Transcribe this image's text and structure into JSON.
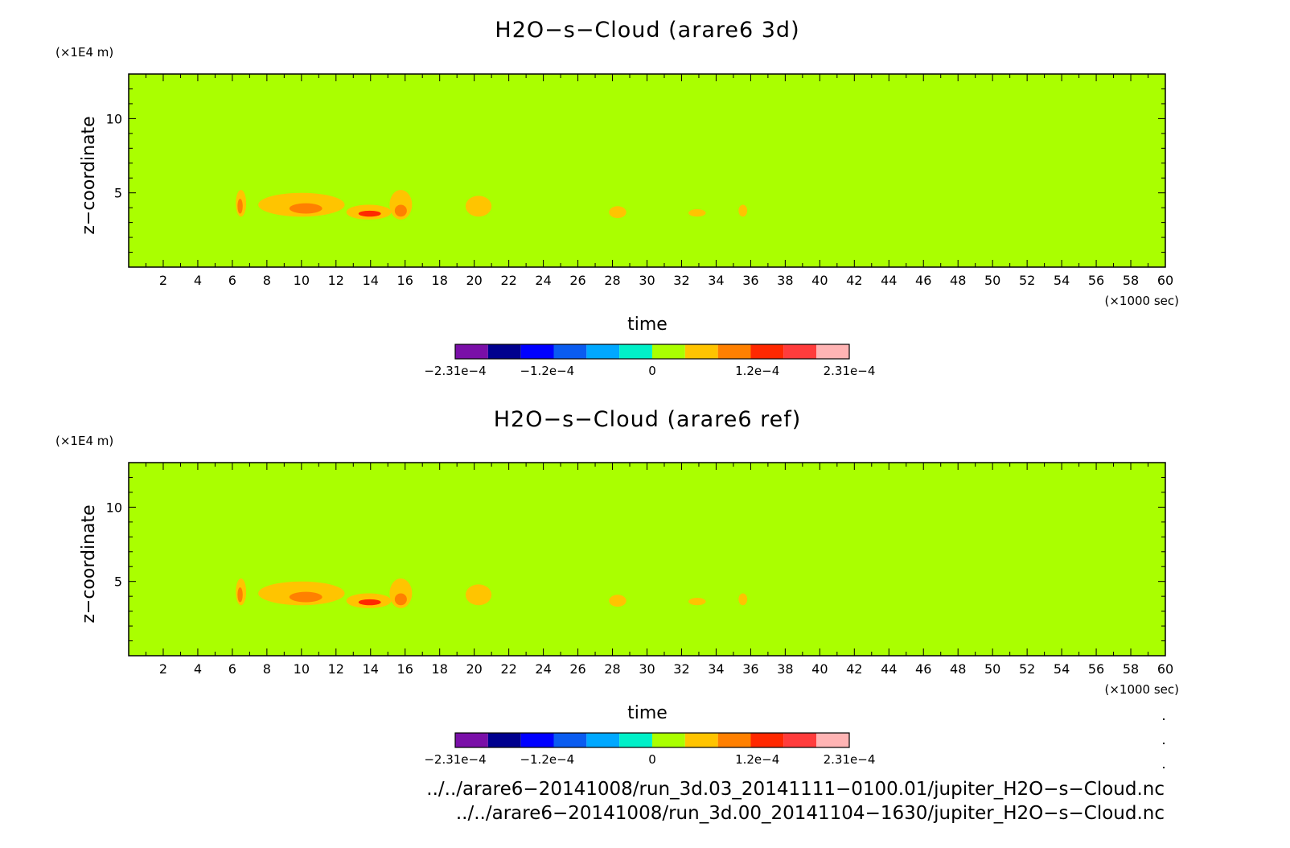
{
  "chart_data": [
    {
      "type": "heatmap",
      "title": "H2O−s−Cloud (arare6 3d)",
      "xlabel": "time",
      "x_unit": "(×1000 sec)",
      "ylabel": "z−coordinate",
      "y_unit": "(×1E4 m)",
      "xlim": [
        0,
        60
      ],
      "ylim": [
        0,
        13
      ],
      "xticks": [
        "2",
        "4",
        "6",
        "8",
        "10",
        "12",
        "14",
        "16",
        "18",
        "20",
        "22",
        "24",
        "26",
        "28",
        "30",
        "32",
        "34",
        "36",
        "38",
        "40",
        "42",
        "44",
        "46",
        "48",
        "50",
        "52",
        "54",
        "56",
        "58",
        "60"
      ],
      "yticks": [
        "5",
        "10"
      ],
      "background_value": 0,
      "features": [
        {
          "x": [
            6.2,
            6.8
          ],
          "y": [
            3.4,
            5.2
          ],
          "level": "orange"
        },
        {
          "x": [
            6.3,
            6.6
          ],
          "y": [
            3.6,
            4.6
          ],
          "level": "dark-orange"
        },
        {
          "x": [
            7.5,
            12.5
          ],
          "y": [
            3.4,
            5.0
          ],
          "level": "orange"
        },
        {
          "x": [
            9.3,
            11.2
          ],
          "y": [
            3.6,
            4.3
          ],
          "level": "dark-orange"
        },
        {
          "x": [
            12.6,
            15.2
          ],
          "y": [
            3.2,
            4.2
          ],
          "level": "orange"
        },
        {
          "x": [
            13.3,
            14.6
          ],
          "y": [
            3.4,
            3.8
          ],
          "level": "red"
        },
        {
          "x": [
            15.1,
            16.4
          ],
          "y": [
            3.2,
            5.2
          ],
          "level": "orange"
        },
        {
          "x": [
            15.4,
            16.1
          ],
          "y": [
            3.4,
            4.2
          ],
          "level": "dark-orange"
        },
        {
          "x": [
            19.5,
            21.0
          ],
          "y": [
            3.4,
            4.8
          ],
          "level": "orange"
        },
        {
          "x": [
            27.8,
            28.8
          ],
          "y": [
            3.3,
            4.1
          ],
          "level": "orange"
        },
        {
          "x": [
            32.4,
            33.4
          ],
          "y": [
            3.4,
            3.9
          ],
          "level": "orange"
        },
        {
          "x": [
            35.3,
            35.8
          ],
          "y": [
            3.4,
            4.2
          ],
          "level": "orange"
        }
      ],
      "colorbar": {
        "colors": [
          "#7a0fa8",
          "#00008e",
          "#0000ff",
          "#0a5cf0",
          "#00a8ff",
          "#00f0c8",
          "#aaff00",
          "#ffc400",
          "#ff8000",
          "#ff2800",
          "#ff3c3c",
          "#ffb4b4"
        ],
        "labels": [
          "−2.31e−4",
          "−1.2e−4",
          "0",
          "1.2e−4",
          "2.31e−4"
        ]
      }
    },
    {
      "type": "heatmap",
      "title": "H2O−s−Cloud (arare6 ref)",
      "xlabel": "time",
      "x_unit": "(×1000 sec)",
      "ylabel": "z−coordinate",
      "y_unit": "(×1E4 m)",
      "xlim": [
        0,
        60
      ],
      "ylim": [
        0,
        13
      ],
      "xticks": [
        "2",
        "4",
        "6",
        "8",
        "10",
        "12",
        "14",
        "16",
        "18",
        "20",
        "22",
        "24",
        "26",
        "28",
        "30",
        "32",
        "34",
        "36",
        "38",
        "40",
        "42",
        "44",
        "46",
        "48",
        "50",
        "52",
        "54",
        "56",
        "58",
        "60"
      ],
      "yticks": [
        "5",
        "10"
      ],
      "background_value": 0,
      "features": [
        {
          "x": [
            6.2,
            6.8
          ],
          "y": [
            3.4,
            5.2
          ],
          "level": "orange"
        },
        {
          "x": [
            6.3,
            6.6
          ],
          "y": [
            3.6,
            4.6
          ],
          "level": "dark-orange"
        },
        {
          "x": [
            7.5,
            12.5
          ],
          "y": [
            3.4,
            5.0
          ],
          "level": "orange"
        },
        {
          "x": [
            9.3,
            11.2
          ],
          "y": [
            3.6,
            4.3
          ],
          "level": "dark-orange"
        },
        {
          "x": [
            12.6,
            15.2
          ],
          "y": [
            3.2,
            4.2
          ],
          "level": "orange"
        },
        {
          "x": [
            13.3,
            14.6
          ],
          "y": [
            3.4,
            3.8
          ],
          "level": "red"
        },
        {
          "x": [
            15.1,
            16.4
          ],
          "y": [
            3.2,
            5.2
          ],
          "level": "orange"
        },
        {
          "x": [
            15.4,
            16.1
          ],
          "y": [
            3.4,
            4.2
          ],
          "level": "dark-orange"
        },
        {
          "x": [
            19.5,
            21.0
          ],
          "y": [
            3.4,
            4.8
          ],
          "level": "orange"
        },
        {
          "x": [
            27.8,
            28.8
          ],
          "y": [
            3.3,
            4.1
          ],
          "level": "orange"
        },
        {
          "x": [
            32.4,
            33.4
          ],
          "y": [
            3.4,
            3.9
          ],
          "level": "orange"
        },
        {
          "x": [
            35.3,
            35.8
          ],
          "y": [
            3.4,
            4.2
          ],
          "level": "orange"
        }
      ],
      "colorbar": {
        "colors": [
          "#7a0fa8",
          "#00008e",
          "#0000ff",
          "#0a5cf0",
          "#00a8ff",
          "#00f0c8",
          "#aaff00",
          "#ffc400",
          "#ff8000",
          "#ff2800",
          "#ff3c3c",
          "#ffb4b4"
        ],
        "labels": [
          "−2.31e−4",
          "−1.2e−4",
          "0",
          "1.2e−4",
          "2.31e−4"
        ]
      }
    }
  ],
  "level_colors": {
    "background": "#aaff00",
    "orange": "#ffc400",
    "dark-orange": "#ff8000",
    "red": "#ff2800"
  },
  "footer": {
    "file_1": "../../arare6−20141008/run_3d.03_20141111−0100.01/jupiter_H2O−s−Cloud.nc",
    "file_2": "../../arare6−20141008/run_3d.00_20141104−1630/jupiter_H2O−s−Cloud.nc"
  }
}
